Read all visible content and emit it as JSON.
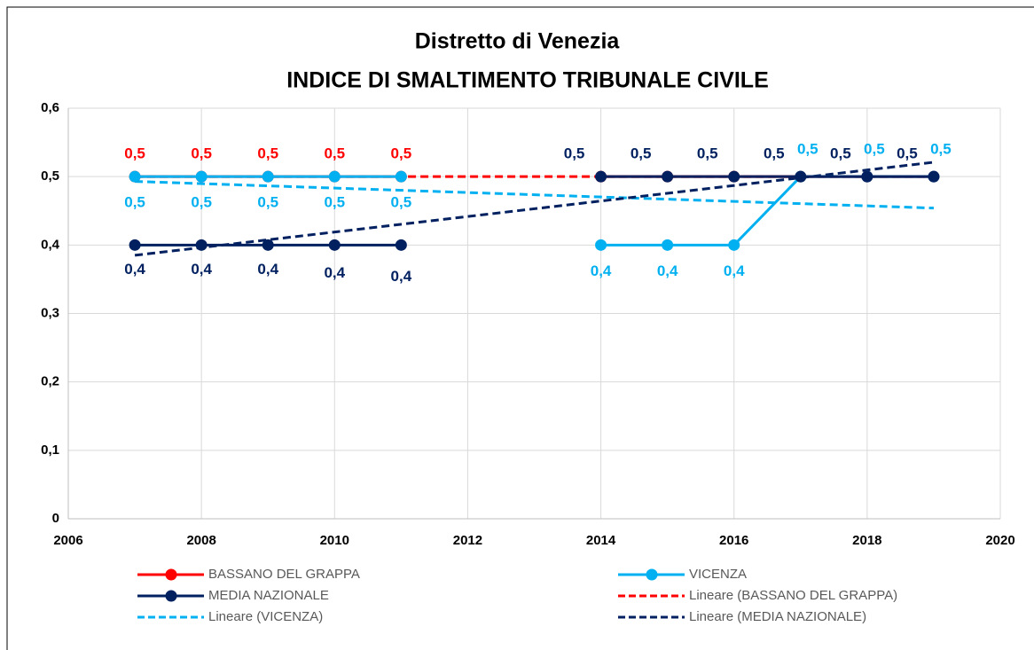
{
  "chart_data": {
    "type": "line",
    "title": [
      "Distretto di Venezia",
      "INDICE DI SMALTIMENTO TRIBUNALE CIVILE"
    ],
    "xlim": [
      2006,
      2020
    ],
    "xticks": [
      2006,
      2008,
      2010,
      2012,
      2014,
      2016,
      2018,
      2020
    ],
    "ylim": [
      0,
      0.6
    ],
    "yticks": [
      0,
      {
        "value": 0.1,
        "label": "0,1"
      },
      {
        "value": 0.2,
        "label": "0,2"
      },
      {
        "value": 0.3,
        "label": "0,3"
      },
      {
        "value": 0.4,
        "label": "0,4"
      },
      {
        "value": 0.5,
        "label": "0,5"
      },
      {
        "value": 0.6,
        "label": "0,6"
      }
    ],
    "grid": true,
    "legend": "bottom",
    "series": [
      {
        "name": "BASSANO DEL GRAPPA",
        "color": "#ff0000",
        "x": [
          2007,
          2008,
          2009,
          2010,
          2011,
          2012,
          2013,
          2014,
          2015,
          2016,
          2017,
          2018,
          2019
        ],
        "values": [
          0.5,
          0.5,
          0.5,
          0.5,
          0.5,
          null,
          null,
          0.5,
          0.5,
          0.5,
          0.5,
          0.5,
          0.5
        ],
        "value_labels": [
          "0,5",
          "0,5",
          "0,5",
          "0,5",
          "0,5",
          null,
          null,
          null,
          null,
          null,
          null,
          null,
          null
        ]
      },
      {
        "name": "VICENZA",
        "color": "#00b0f0",
        "x": [
          2007,
          2008,
          2009,
          2010,
          2011,
          2012,
          2013,
          2014,
          2015,
          2016,
          2017,
          2018,
          2019
        ],
        "values": [
          0.5,
          0.5,
          0.5,
          0.5,
          0.5,
          null,
          null,
          0.4,
          0.4,
          0.4,
          0.5,
          0.5,
          0.5
        ],
        "value_labels": [
          "0,5",
          "0,5",
          "0,5",
          "0,5",
          "0,5",
          null,
          null,
          "0,4",
          "0,4",
          "0,4",
          "0,5",
          "0,5",
          "0,5"
        ]
      },
      {
        "name": "MEDIA NAZIONALE",
        "color": "#002060",
        "x": [
          2007,
          2008,
          2009,
          2010,
          2011,
          2012,
          2013,
          2014,
          2015,
          2016,
          2017,
          2018,
          2019
        ],
        "values": [
          0.4,
          0.4,
          0.4,
          0.4,
          0.4,
          null,
          null,
          0.5,
          0.5,
          0.5,
          0.5,
          0.5,
          0.5
        ],
        "value_labels": [
          "0,4",
          "0,4",
          "0,4",
          "0,4",
          "0,4",
          null,
          null,
          "0,5",
          "0,5",
          "0,5",
          "0,5",
          "0,5",
          "0,5"
        ]
      },
      {
        "name": "Lineare (BASSANO DEL GRAPPA)",
        "color": "#ff0000",
        "dash": true,
        "x": [
          2007,
          2019
        ],
        "values": [
          0.5,
          0.5
        ]
      },
      {
        "name": "Lineare (VICENZA)",
        "color": "#00b0f0",
        "dash": true,
        "x": [
          2007,
          2019
        ],
        "values": [
          0.493,
          0.454
        ]
      },
      {
        "name": "Lineare (MEDIA NAZIONALE)",
        "color": "#002060",
        "dash": true,
        "x": [
          2007,
          2019
        ],
        "values": [
          0.385,
          0.521
        ]
      }
    ]
  }
}
